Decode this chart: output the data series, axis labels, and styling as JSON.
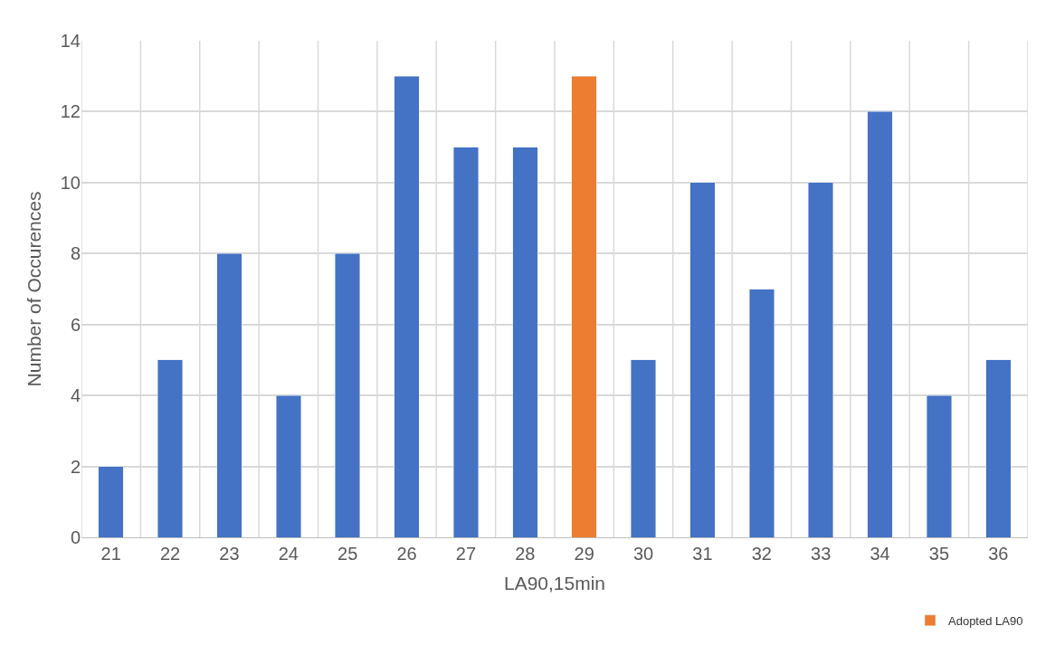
{
  "chart_data": {
    "type": "bar",
    "xlabel": "LA90,15min",
    "ylabel": "Number of Occurences",
    "categories": [
      "21",
      "22",
      "23",
      "24",
      "25",
      "26",
      "27",
      "28",
      "29",
      "30",
      "31",
      "32",
      "33",
      "34",
      "35",
      "36"
    ],
    "series": [
      {
        "color": "#4472c4",
        "values": [
          2,
          5,
          8,
          4,
          8,
          13,
          11,
          11,
          null,
          5,
          10,
          7,
          10,
          12,
          4,
          5
        ]
      },
      {
        "name": "Adopted LA90",
        "color": "#ed7d31",
        "values": [
          null,
          null,
          null,
          null,
          null,
          null,
          null,
          null,
          13,
          null,
          null,
          null,
          null,
          null,
          null,
          null
        ]
      }
    ],
    "stacked": true,
    "ylim": [
      0,
      14
    ],
    "yticks": [
      0,
      2,
      4,
      6,
      8,
      10,
      12,
      14
    ],
    "grid": true,
    "legend": "bottom right"
  }
}
